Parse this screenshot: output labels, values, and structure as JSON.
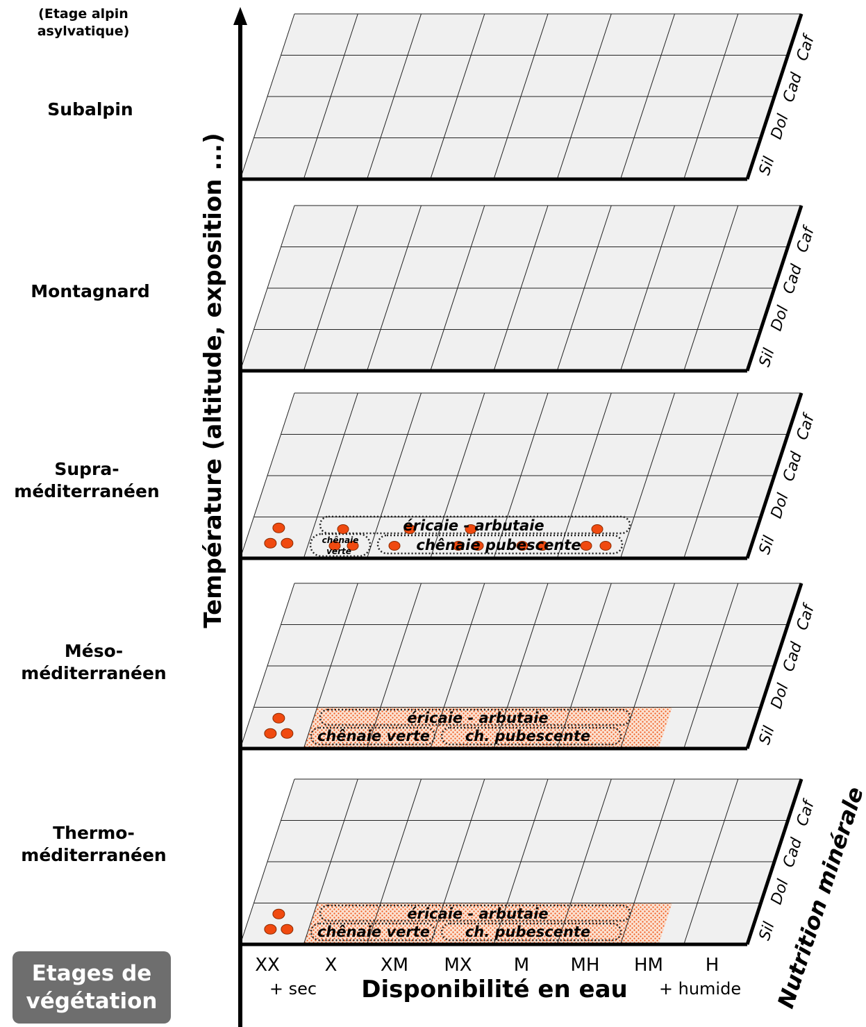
{
  "vegetation_levels": {
    "alpine": "(Etage alpin asylvatique)",
    "subalpine": "Subalpin",
    "montane": "Montagnard",
    "supra": "Supra-méditerranéen",
    "meso": "Méso-méditerranéen",
    "thermo": "Thermo-méditerranéen"
  },
  "etages_box": {
    "line1": "Etages de",
    "line2": "végétation"
  },
  "axes": {
    "y_label": "Température (altitude, exposition ...)",
    "x_label": "Disponibilité en eau",
    "x_left_note": "+ sec",
    "x_right_note": "+ humide",
    "z_label": "Nutrition minérale"
  },
  "water_categories": [
    "XX",
    "X",
    "XM",
    "MX",
    "M",
    "MH",
    "HM",
    "H"
  ],
  "nutrition_categories": [
    "Sil",
    "Dol",
    "Cad",
    "Caf"
  ],
  "colors": {
    "plane_fill": "#f0f0f0",
    "dot": "#f04a10",
    "dot_stroke": "#8a2a00",
    "box": "#6e6e6e"
  },
  "zones": {
    "supra": {
      "ericaie": "éricaie - arbutaie",
      "chenaie_verte": "chênaie verte",
      "pubescente": "chênaie pubescente"
    },
    "meso": {
      "ericaie": "éricaie - arbutaie",
      "chenaie_verte": "chênaie verte",
      "pubescente": "ch. pubescente"
    },
    "thermo": {
      "ericaie": "éricaie - arbutaie",
      "chenaie_verte": "chênaie verte",
      "pubescente": "ch. pubescente"
    }
  }
}
